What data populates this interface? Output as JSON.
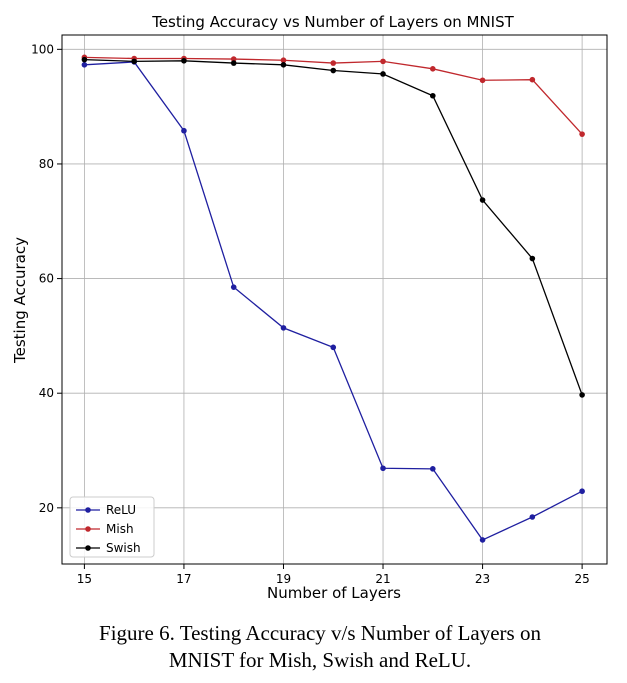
{
  "chart_data": {
    "type": "line",
    "title": "Testing Accuracy vs Number of Layers on MNIST",
    "xlabel": "Number of Layers",
    "ylabel": "Testing Accuracy",
    "x": [
      15,
      16,
      17,
      18,
      19,
      20,
      21,
      22,
      23,
      24,
      25
    ],
    "xticks": [
      15,
      17,
      19,
      21,
      23,
      25
    ],
    "yticks": [
      20,
      40,
      60,
      80,
      100
    ],
    "xlim": [
      14.55,
      25.5
    ],
    "ylim": [
      10.2,
      102.5
    ],
    "grid": true,
    "legend_position": "lower-left",
    "series": [
      {
        "name": "ReLU",
        "color": "#1f1fa0",
        "values": [
          97.3,
          97.8,
          85.8,
          58.5,
          51.4,
          48.0,
          26.9,
          26.8,
          14.4,
          18.4,
          22.9
        ]
      },
      {
        "name": "Mish",
        "color": "#c0282d",
        "values": [
          98.6,
          98.4,
          98.4,
          98.3,
          98.1,
          97.6,
          97.9,
          96.6,
          94.6,
          94.7,
          85.2
        ]
      },
      {
        "name": "Swish",
        "color": "#000000",
        "values": [
          98.2,
          97.9,
          98.0,
          97.6,
          97.3,
          96.3,
          95.7,
          91.9,
          73.7,
          63.5,
          39.7
        ]
      }
    ]
  },
  "caption": {
    "line1": "Figure 6. Testing Accuracy v/s Number of Layers on",
    "line2": "MNIST for Mish, Swish and ReLU."
  }
}
